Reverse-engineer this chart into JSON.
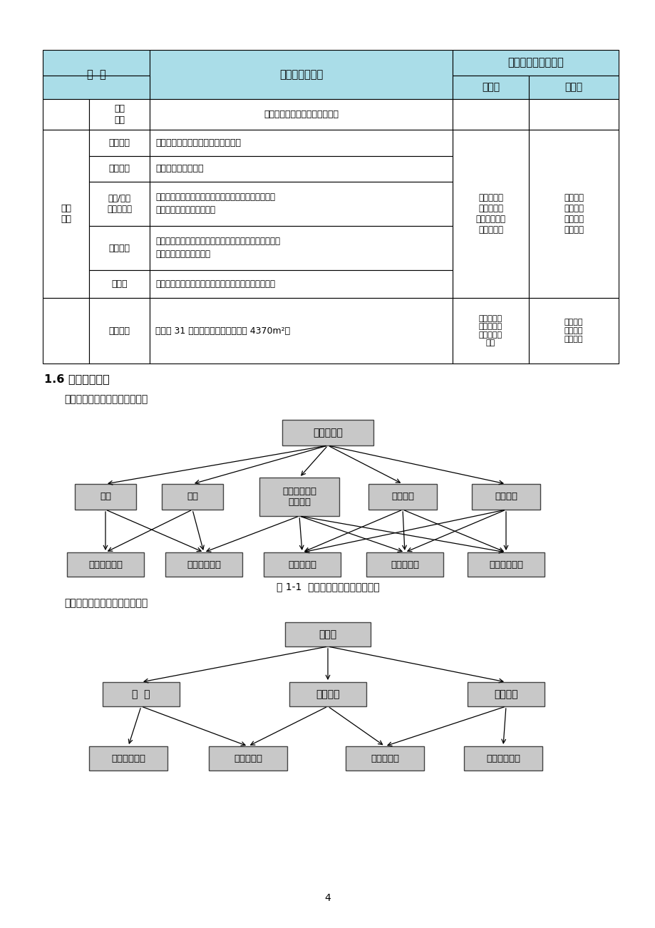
{
  "page_bg": "#ffffff",
  "header_bg": "#aadde8",
  "cell_bg": "#ffffff",
  "box_bg": "#c8c8c8",
  "box_ec": "#444444",
  "section_title": "1.6 工艺流程简述",
  "para1": "本项目施工期污染流程见下图。",
  "para2": "本项目营运期污染流程如下图。",
  "fig1_caption": "图 1-1  本项目施工期污染分析框图",
  "page_number": "4",
  "col_name": "名  称",
  "col_content": "项目内容及规模",
  "col_impact": "可能产生的环境影响",
  "col_constr": "施工期",
  "col_oper": "运营期",
  "row_lvhua": "绿化\n工程",
  "row_lvhua_content": "道路两侧回填种植土并植树绿化",
  "row_linshi": "临时\n工程",
  "row_yingdi": "施工营地",
  "row_yingdi_content": "租用当地民房，项目内不设施工营地",
  "row_biandao": "施工便道",
  "row_biandao_content": "主全线不设施工便道",
  "row_biaotu": "表土/挖方\n临时堆放场",
  "row_biaotu_content1": "本项目表土临时堆放设置在永久占地或施工场地集中堆",
  "row_biaotu_content2": "放，以供道路绿化时使用。",
  "row_cailiao": "材料堆场",
  "row_cailiao_content1": "外购石料等建筑材料，公路运输，直接到达施工地，项目",
  "row_cailiao_content2": "不设取土、取石场等料场",
  "row_jiaobanchang": "搅拌场",
  "row_jiaobanchang_content": "设临时混凝土搅拌站，用于北环路五段混凝土路面铺设",
  "merged_col4_text": "临时占地、\n破坏植被、\n噪声、扬尘、\n废水、垃圾",
  "merged_col5_text": "施工结束\n后采取绿\n化等措施\n进行恢复",
  "row_chaiqian": "拆迁安置",
  "row_chaiqian_content": "需拆迁 31 栋民房，工程拆迁面积约 4370m²。",
  "row_chaiqian_col4": "迁移居民生\n活质量受到\n一定程度的\n影响",
  "row_chaiqian_col5": "生活质量\n不低于拆\n迁安置前",
  "ch1_top_label": "工程建设期",
  "ch1_mid_labels": [
    "征地",
    "拆迁",
    "路基、管网、\n路面施工",
    "施工场地",
    "运输车辆"
  ],
  "ch1_bot_labels": [
    "社会环境影响",
    "生态环境影响",
    "声环境影响",
    "水环境影响",
    "环境空气影响"
  ],
  "ch2_top_label": "运营期",
  "ch2_mid_labels": [
    "道  路",
    "运输车辆",
    "事故风险"
  ],
  "ch2_bot_labels": [
    "社会环境影响",
    "声环境影响",
    "水环境影响",
    "环境空气影响"
  ]
}
